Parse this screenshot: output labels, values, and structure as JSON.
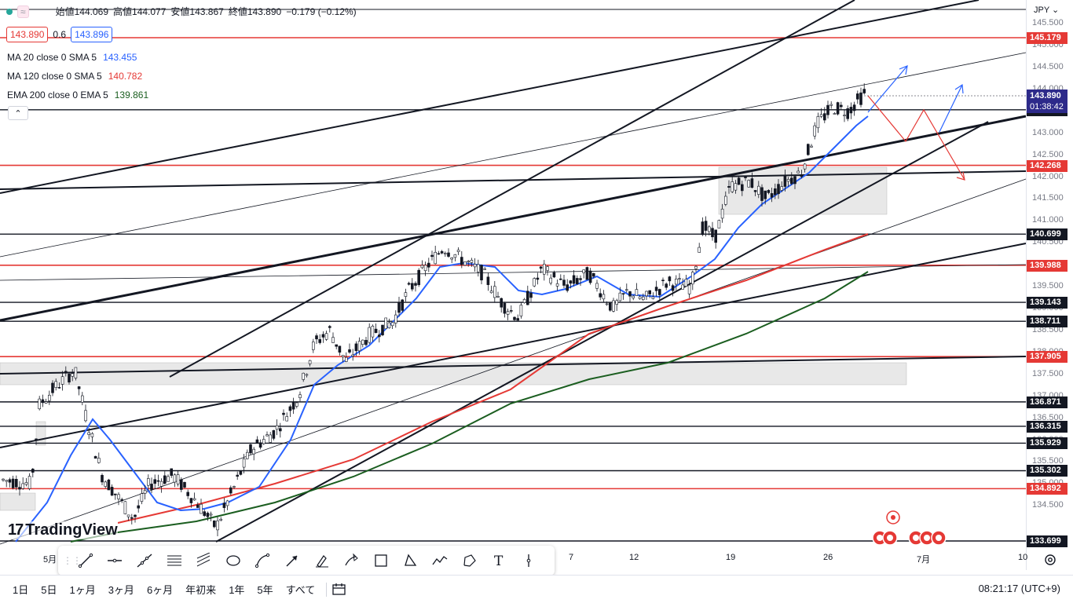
{
  "ohlc": {
    "open_label": "始値",
    "open": "144.069",
    "high_label": "高値",
    "high": "144.077",
    "low_label": "安値",
    "low": "143.867",
    "close_label": "終値",
    "close": "143.890",
    "change": "−0.179 (−0.12%)"
  },
  "quote": {
    "bid": "143.890",
    "spread": "0.6",
    "ask": "143.896"
  },
  "indicators": [
    {
      "label": "MA 20 close 0 SMA 5",
      "value": "143.455",
      "color": "#2962ff"
    },
    {
      "label": "MA 120 close 0 SMA 5",
      "value": "140.782",
      "color": "#e53935"
    },
    {
      "label": "EMA 200 close 0 EMA 5",
      "value": "139.861",
      "color": "#1b5e20"
    }
  ],
  "currency": "JPY",
  "price_ticks": [
    "145.500",
    "145.000",
    "144.500",
    "144.000",
    "143.500",
    "143.000",
    "142.500",
    "142.000",
    "141.500",
    "141.000",
    "140.500",
    "139.500",
    "139.000",
    "138.500",
    "138.000",
    "137.500",
    "137.000",
    "136.500",
    "136.000",
    "135.500",
    "135.000",
    "134.500"
  ],
  "price_levels": [
    {
      "value": "145.179",
      "color": "red"
    },
    {
      "value": "143.535",
      "color": "black"
    },
    {
      "value": "142.268",
      "color": "red"
    },
    {
      "value": "140.699",
      "color": "black"
    },
    {
      "value": "139.988",
      "color": "red"
    },
    {
      "value": "139.143",
      "color": "black"
    },
    {
      "value": "138.711",
      "color": "black"
    },
    {
      "value": "137.905",
      "color": "red"
    },
    {
      "value": "136.871",
      "color": "black"
    },
    {
      "value": "136.315",
      "color": "black"
    },
    {
      "value": "135.929",
      "color": "black"
    },
    {
      "value": "135.302",
      "color": "black"
    },
    {
      "value": "134.892",
      "color": "red"
    },
    {
      "value": "133.699",
      "color": "black"
    }
  ],
  "current_price": {
    "value": "143.890",
    "countdown": "01:38:42"
  },
  "time_labels": [
    "5月",
    "7",
    "12",
    "19",
    "26",
    "7月",
    "10"
  ],
  "periods": [
    "1日",
    "5日",
    "1ヶ月",
    "3ヶ月",
    "6ヶ月",
    "年初来",
    "1年",
    "5年",
    "すべて"
  ],
  "clock": "08:21:17 (UTC+9)",
  "logo": "TradingView",
  "toolbar_tools": [
    "trend-line-icon",
    "horizontal-ray-icon",
    "extended-line-icon",
    "parallel-channel-icon",
    "pitchfork-icon",
    "ellipse-icon",
    "path-icon",
    "arrow-icon",
    "brush-icon",
    "highlighter-icon",
    "rectangle-icon",
    "triangle-icon",
    "zigzag-icon",
    "polyline-icon",
    "text-icon",
    "vertical-line-icon"
  ],
  "colors": {
    "up": "#26a69a",
    "down": "#131722",
    "ma20": "#2962ff",
    "ma120": "#e53935",
    "ema200": "#1b5e20",
    "level_red": "#e53935",
    "level_black": "#131722",
    "current": "#2d2a8a"
  }
}
